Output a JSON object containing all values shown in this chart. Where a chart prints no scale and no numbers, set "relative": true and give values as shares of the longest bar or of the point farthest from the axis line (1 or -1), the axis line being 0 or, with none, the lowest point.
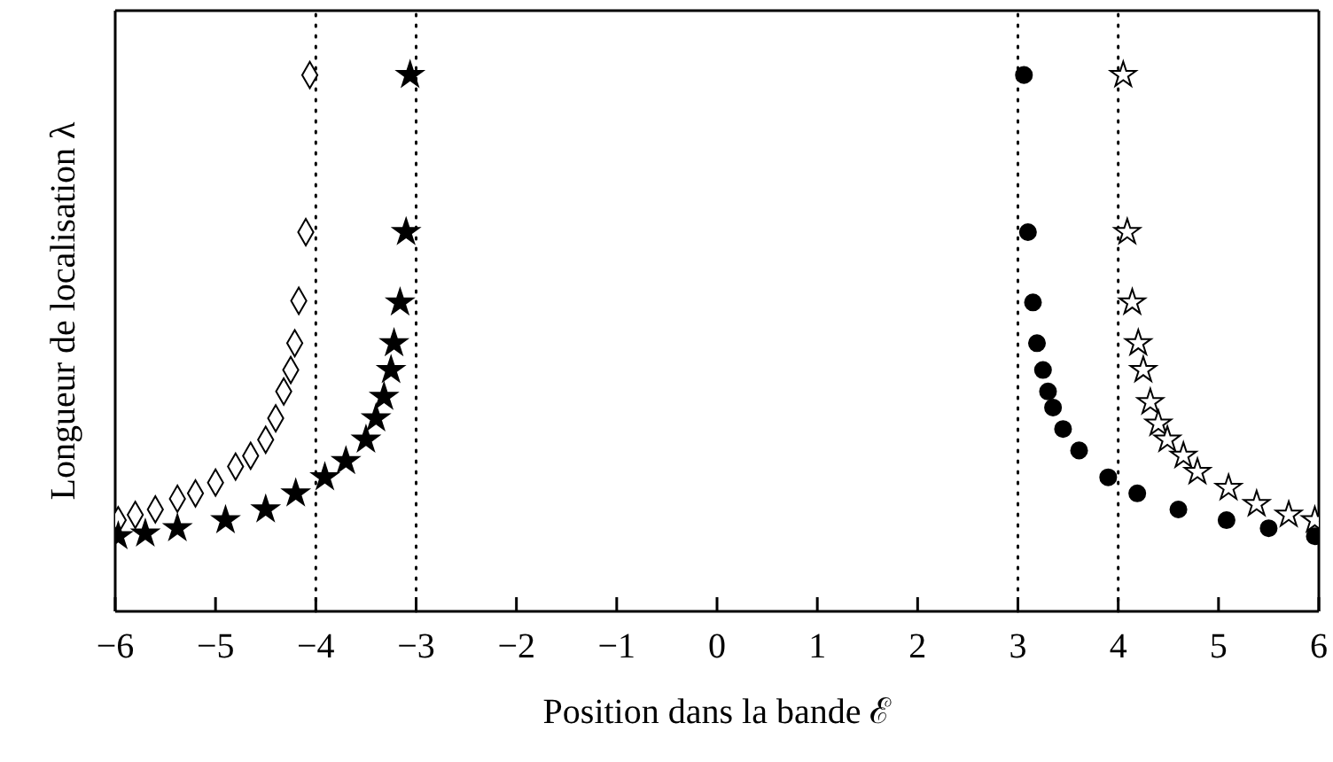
{
  "chart_data": {
    "type": "scatter",
    "xlabel": "Position dans la bande ℰ",
    "ylabel": "Longueur de localisation λ",
    "relative": true,
    "xlim": [
      -6,
      6
    ],
    "xticks": [
      -6,
      -5,
      -4,
      -3,
      -2,
      -1,
      0,
      1,
      2,
      3,
      4,
      5,
      6
    ],
    "series": [
      {
        "color": "#000000",
        "marker": "diamond",
        "x": [
          -4.06,
          -4.1,
          -4.17,
          -4.21,
          -4.25,
          -4.32,
          -4.4,
          -4.5,
          -4.65,
          -4.8,
          -5.0,
          -5.2,
          -5.38,
          -5.6,
          -5.8,
          -5.97
        ],
        "values": [
          1.0,
          0.707,
          0.579,
          0.5,
          0.45,
          0.41,
          0.36,
          0.32,
          0.29,
          0.27,
          0.24,
          0.22,
          0.21,
          0.19,
          0.18,
          0.17
        ]
      },
      {
        "color": "#000000",
        "marker": "star",
        "x": [
          -3.06,
          -3.1,
          -3.16,
          -3.22,
          -3.25,
          -3.32,
          -3.4,
          -3.5,
          -3.7,
          -3.91,
          -4.2,
          -4.5,
          -4.9,
          -5.38,
          -5.7,
          -5.97
        ],
        "values": [
          1.0,
          0.707,
          0.576,
          0.5,
          0.45,
          0.4,
          0.36,
          0.32,
          0.28,
          0.25,
          0.22,
          0.19,
          0.17,
          0.155,
          0.145,
          0.14
        ]
      },
      {
        "color": "#000000",
        "marker": "circle",
        "x": [
          3.06,
          3.1,
          3.15,
          3.19,
          3.25,
          3.3,
          3.35,
          3.45,
          3.61,
          3.9,
          4.19,
          4.6,
          5.08,
          5.5,
          5.96
        ],
        "values": [
          1.0,
          0.707,
          0.576,
          0.5,
          0.45,
          0.41,
          0.38,
          0.34,
          0.3,
          0.25,
          0.22,
          0.19,
          0.17,
          0.155,
          0.14
        ]
      },
      {
        "color": "#000000",
        "marker": "star",
        "x": [
          4.05,
          4.09,
          4.14,
          4.2,
          4.25,
          4.32,
          4.4,
          4.49,
          4.65,
          4.79,
          5.1,
          5.38,
          5.7,
          5.96
        ],
        "values": [
          1.0,
          0.707,
          0.576,
          0.5,
          0.45,
          0.39,
          0.35,
          0.32,
          0.29,
          0.26,
          0.23,
          0.2,
          0.18,
          0.17
        ]
      }
    ],
    "ref_lines": [
      {
        "axis": "x",
        "value": -4,
        "color": "#000000",
        "line_style": "dotted"
      },
      {
        "axis": "x",
        "value": -3,
        "color": "#000000",
        "line_style": "dotted"
      },
      {
        "axis": "x",
        "value": 3,
        "color": "#000000",
        "line_style": "dotted"
      },
      {
        "axis": "x",
        "value": 4,
        "color": "#000000",
        "line_style": "dotted"
      }
    ]
  }
}
